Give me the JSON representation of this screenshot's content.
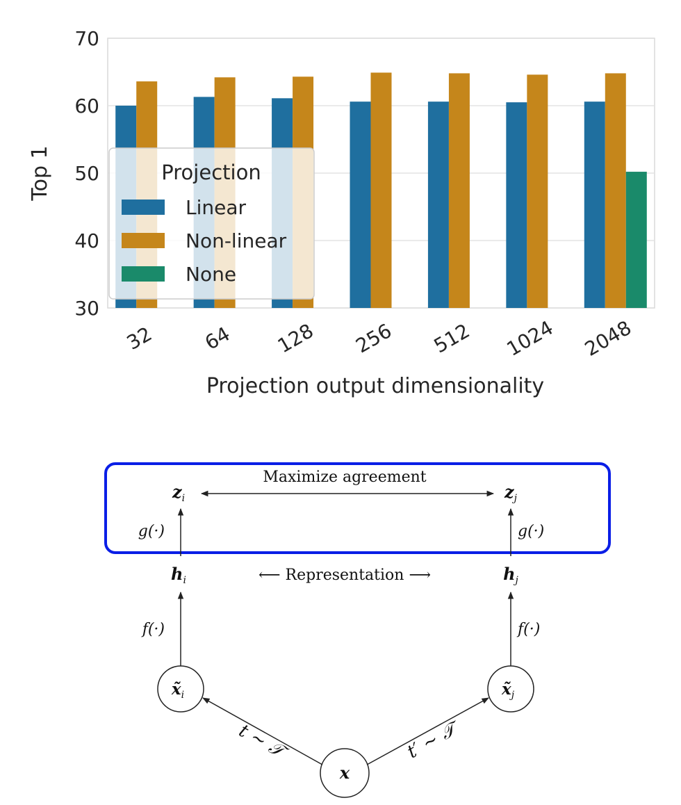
{
  "chart_data": {
    "type": "bar",
    "title": "",
    "xlabel": "Projection output dimensionality",
    "ylabel": "Top 1",
    "ylim": [
      30,
      70
    ],
    "yticks": [
      "30",
      "40",
      "50",
      "60",
      "70"
    ],
    "grid": true,
    "categories": [
      "32",
      "64",
      "128",
      "256",
      "512",
      "1024",
      "2048"
    ],
    "series": [
      {
        "name": "Linear",
        "color": "#1f6f9f",
        "values": [
          60.0,
          61.3,
          61.1,
          60.6,
          60.6,
          60.5,
          60.6
        ]
      },
      {
        "name": "Non-linear",
        "color": "#c5861b",
        "values": [
          63.6,
          64.2,
          64.3,
          64.9,
          64.8,
          64.6,
          64.8
        ]
      },
      {
        "name": "None",
        "color": "#1a8a6a",
        "values": [
          null,
          null,
          null,
          null,
          null,
          null,
          50.2
        ]
      }
    ],
    "legend": {
      "title": "Projection",
      "placement": "lower-left"
    }
  },
  "diagram": {
    "top_label": "Maximize agreement",
    "middle_label": "⟵ Representation ⟶",
    "z_i": "z",
    "z_i_sub": "i",
    "z_j": "z",
    "z_j_sub": "j",
    "h_i": "h",
    "h_i_sub": "i",
    "h_j": "h",
    "h_j_sub": "j",
    "g_left": "g(·)",
    "g_right": "g(·)",
    "f_left": "f(·)",
    "f_right": "f(·)",
    "x_i": "x̃",
    "x_i_sub": "i",
    "x_j": "x̃",
    "x_j_sub": "j",
    "x": "x",
    "t_left": "t ∼ 𝒯",
    "t_right": "t′ ∼ 𝒯",
    "highlight_color": "#0a1ee6"
  }
}
